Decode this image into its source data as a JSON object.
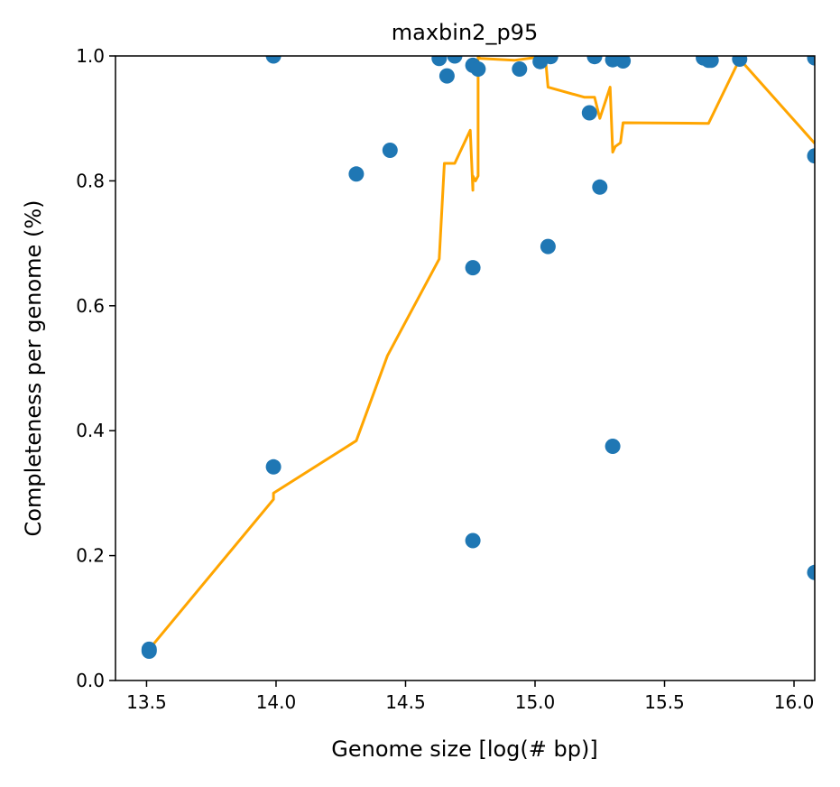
{
  "chart_data": {
    "type": "scatter",
    "title": "maxbin2_p95",
    "xlabel": "Genome size [log(# bp)]",
    "ylabel": "Completeness per genome (%)",
    "xlim": [
      13.38,
      16.08
    ],
    "ylim": [
      0.0,
      1.0
    ],
    "grid": false,
    "x_ticks": [
      "13.5",
      "14.0",
      "14.5",
      "15.0",
      "15.5",
      "16.0"
    ],
    "y_ticks": [
      "0.0",
      "0.2",
      "0.4",
      "0.6",
      "0.8",
      "1.0"
    ],
    "colors": {
      "scatter": "#1f77b4",
      "line": "#ffa500"
    },
    "scatter": {
      "x": [
        13.51,
        13.51,
        13.99,
        13.99,
        14.31,
        14.44,
        14.63,
        14.66,
        14.69,
        14.76,
        14.76,
        14.76,
        14.78,
        14.94,
        15.02,
        15.05,
        15.06,
        15.21,
        15.23,
        15.25,
        15.3,
        15.3,
        15.34,
        15.65,
        15.67,
        15.68,
        15.79,
        16.08,
        16.08,
        16.08
      ],
      "y": [
        0.05,
        0.047,
        0.342,
        1.0,
        0.811,
        0.849,
        0.996,
        0.968,
        1.0,
        0.661,
        0.224,
        0.985,
        0.979,
        0.979,
        0.991,
        0.695,
        0.999,
        0.909,
        0.999,
        0.79,
        0.994,
        0.375,
        0.992,
        0.997,
        0.993,
        0.993,
        0.995,
        0.997,
        0.84,
        0.173
      ]
    },
    "line": {
      "x": [
        13.51,
        13.99,
        13.99,
        14.31,
        14.43,
        14.63,
        14.65,
        14.69,
        14.75,
        14.76,
        14.76,
        14.77,
        14.78,
        14.78,
        14.79,
        14.92,
        14.99,
        15.04,
        15.05,
        15.19,
        15.23,
        15.25,
        15.29,
        15.3,
        15.31,
        15.33,
        15.34,
        15.67,
        15.79,
        16.08
      ],
      "y": [
        0.05,
        0.29,
        0.3,
        0.384,
        0.52,
        0.675,
        0.828,
        0.828,
        0.881,
        0.785,
        0.808,
        0.8,
        0.808,
        0.998,
        0.996,
        0.993,
        0.997,
        0.997,
        0.95,
        0.934,
        0.934,
        0.9,
        0.95,
        0.846,
        0.855,
        0.861,
        0.893,
        0.892,
        0.995,
        0.86
      ]
    }
  }
}
